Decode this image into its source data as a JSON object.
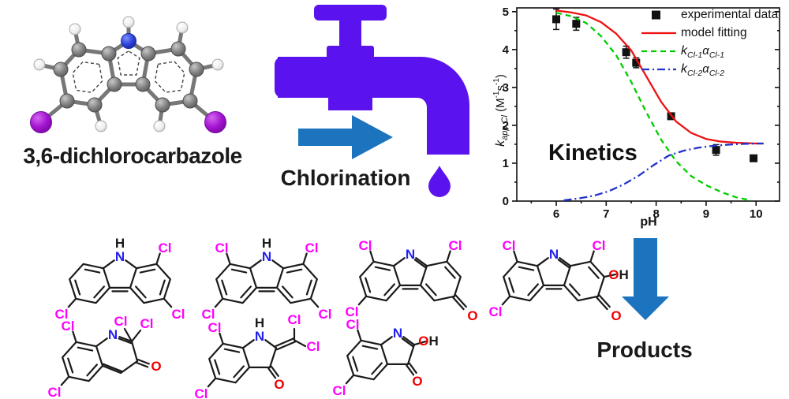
{
  "molecule3d": {
    "label": "3,6-dichlorocarbazole"
  },
  "process": {
    "label": "Chlorination",
    "faucet_color": "#5a13ef",
    "arrow_color": "#1b74bd"
  },
  "products_section": {
    "label": "Products",
    "arrow_color": "#1b74bd"
  },
  "atoms": {
    "cl": "Cl",
    "n": "N",
    "h": "H",
    "o": "O"
  },
  "chart_data": {
    "type": "scatter+line",
    "xlabel": "pH",
    "ylabel": "k_app,Cl (M-1 s-1)",
    "ylabel_parts": {
      "sym": "k",
      "sub": "app,Cl",
      "unit_open": " (M",
      "sup1": "-1",
      "unit_mid": "s",
      "sup2": "-1",
      "unit_close": ")"
    },
    "annotation": "Kinetics",
    "xlim": [
      5.21,
      10.47
    ],
    "ylim": [
      0,
      5.1
    ],
    "xticks": [
      6,
      7,
      8,
      9,
      10
    ],
    "yticks": [
      0,
      1,
      2,
      3,
      4,
      5
    ],
    "minor_step_x": 0.5,
    "minor_step_y": 0.5,
    "grid": false,
    "legend_position": "upper right",
    "series": [
      {
        "name": "experimental data",
        "type": "scatter",
        "marker": "square",
        "color": "#111111",
        "x": [
          6.0,
          6.4,
          7.4,
          7.6,
          8.3,
          9.2,
          9.95
        ],
        "y": [
          4.8,
          4.68,
          3.93,
          3.65,
          2.24,
          1.35,
          1.13
        ],
        "yerr": [
          0.27,
          0.17,
          0.16,
          0.13,
          0.05,
          0.14,
          0.08
        ],
        "legend_label": "experimental data"
      },
      {
        "name": "model fitting",
        "type": "line",
        "dash": "solid",
        "color": "#ee1111",
        "x": [
          6.0,
          6.3,
          6.6,
          6.9,
          7.2,
          7.5,
          7.8,
          8.1,
          8.4,
          8.7,
          9.0,
          9.3,
          9.6,
          10.0,
          10.15
        ],
        "y": [
          5.03,
          4.98,
          4.9,
          4.72,
          4.42,
          3.98,
          3.3,
          2.62,
          2.1,
          1.8,
          1.64,
          1.57,
          1.54,
          1.52,
          1.52
        ],
        "legend_label": "model fitting"
      },
      {
        "name": "kCl-1*aCl-1",
        "type": "line",
        "dash": "dashed",
        "color": "#00cc00",
        "x": [
          6.0,
          6.3,
          6.6,
          6.9,
          7.2,
          7.5,
          7.8,
          8.1,
          8.4,
          8.7,
          9.0,
          9.3,
          9.6,
          9.9
        ],
        "y": [
          4.97,
          4.88,
          4.7,
          4.35,
          3.85,
          3.15,
          2.35,
          1.62,
          1.05,
          0.66,
          0.42,
          0.24,
          0.1,
          0.02
        ],
        "legend_parts": {
          "sym": "k",
          "sub": "Cl-1",
          "sym2": "α",
          "sub2": "Cl-1"
        }
      },
      {
        "name": "kCl-2*aCl-2",
        "type": "line",
        "dash": "dashdot",
        "color": "#2233cc",
        "x": [
          6.15,
          6.45,
          6.75,
          7.05,
          7.35,
          7.65,
          7.95,
          8.25,
          8.55,
          8.85,
          9.15,
          9.45,
          9.75,
          10.05,
          10.15
        ],
        "y": [
          0.02,
          0.07,
          0.14,
          0.26,
          0.44,
          0.67,
          0.95,
          1.2,
          1.33,
          1.41,
          1.46,
          1.49,
          1.51,
          1.52,
          1.52
        ],
        "legend_parts": {
          "sym": "k",
          "sub": "Cl-2",
          "sym2": "α",
          "sub2": "Cl-2"
        }
      }
    ]
  }
}
